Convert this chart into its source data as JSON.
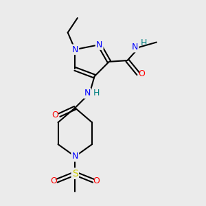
{
  "bg_color": "#ebebeb",
  "atom_colors": {
    "N": "#0000ff",
    "O": "#ff0000",
    "S": "#cccc00",
    "C": "#000000",
    "H": "#008080"
  },
  "bond_color": "#000000",
  "bond_width": 1.5,
  "font_size": 9
}
